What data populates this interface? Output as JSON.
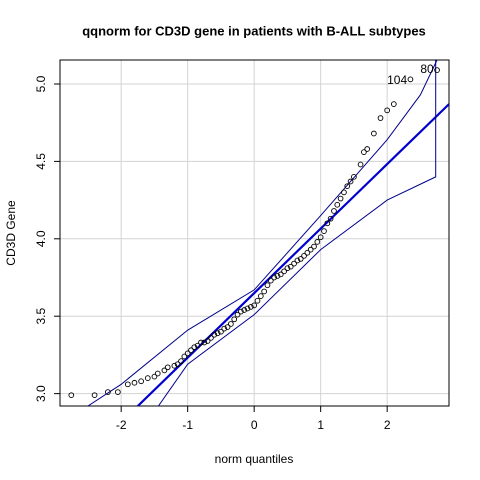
{
  "chart_data": {
    "type": "scatter",
    "title": "qqnorm for CD3D gene in patients with B-ALL subtypes",
    "xlabel": "norm quantiles",
    "ylabel": "CD3D Gene",
    "xlim": [
      -2.92,
      2.93
    ],
    "ylim": [
      2.92,
      5.155
    ],
    "xticks": [
      -2,
      -1,
      0,
      1,
      2
    ],
    "yticks": [
      {
        "value": 3,
        "label": "3.0"
      },
      3.5,
      {
        "value": 4,
        "label": "4.0"
      },
      4.5,
      {
        "value": 5,
        "label": "5.0"
      }
    ],
    "grid": true,
    "point_color": "#000000",
    "x": [
      -2.75,
      -2.4,
      -2.2,
      -2.05,
      -1.9,
      -1.8,
      -1.7,
      -1.6,
      -1.5,
      -1.45,
      -1.35,
      -1.3,
      -1.2,
      -1.15,
      -1.1,
      -1.05,
      -1.0,
      -0.95,
      -0.9,
      -0.85,
      -0.8,
      -0.75,
      -0.7,
      -0.65,
      -0.6,
      -0.55,
      -0.5,
      -0.45,
      -0.4,
      -0.35,
      -0.3,
      -0.25,
      -0.2,
      -0.15,
      -0.1,
      -0.05,
      0.0,
      0.05,
      0.1,
      0.15,
      0.2,
      0.25,
      0.3,
      0.35,
      0.4,
      0.45,
      0.5,
      0.55,
      0.6,
      0.65,
      0.7,
      0.75,
      0.8,
      0.85,
      0.9,
      0.95,
      1.0,
      1.05,
      1.1,
      1.15,
      1.2,
      1.25,
      1.3,
      1.35,
      1.4,
      1.45,
      1.5,
      1.6,
      1.65,
      1.7,
      1.8,
      1.9,
      2.0,
      2.1,
      2.35,
      2.75
    ],
    "y": [
      2.99,
      2.99,
      3.01,
      3.01,
      3.06,
      3.07,
      3.08,
      3.1,
      3.11,
      3.13,
      3.15,
      3.17,
      3.18,
      3.19,
      3.21,
      3.24,
      3.26,
      3.28,
      3.3,
      3.31,
      3.33,
      3.33,
      3.34,
      3.36,
      3.38,
      3.39,
      3.4,
      3.42,
      3.43,
      3.45,
      3.48,
      3.51,
      3.53,
      3.54,
      3.55,
      3.56,
      3.57,
      3.6,
      3.63,
      3.66,
      3.7,
      3.73,
      3.75,
      3.76,
      3.77,
      3.79,
      3.81,
      3.82,
      3.84,
      3.86,
      3.87,
      3.89,
      3.91,
      3.93,
      3.95,
      3.98,
      4.01,
      4.05,
      4.1,
      4.13,
      4.18,
      4.22,
      4.26,
      4.3,
      4.34,
      4.37,
      4.4,
      4.48,
      4.56,
      4.58,
      4.68,
      4.78,
      4.83,
      4.87,
      5.03,
      5.09
    ],
    "lines": [
      {
        "color": "#0000cd",
        "x": [
          -1.75,
          2.93
        ],
        "y": [
          2.92,
          4.87
        ]
      },
      {
        "color": "#00008b",
        "x": [
          -2.5,
          -2.0,
          -1.0,
          0.0,
          1.0,
          2.0,
          2.5,
          2.75
        ],
        "y": [
          2.92,
          3.06,
          3.41,
          3.67,
          4.15,
          4.64,
          4.93,
          5.155
        ]
      },
      {
        "color": "#00008b",
        "x": [
          -1.44,
          -1.0,
          0.0,
          1.0,
          2.0,
          2.73,
          2.73
        ],
        "y": [
          2.92,
          3.19,
          3.51,
          3.93,
          4.25,
          4.4,
          5.155
        ]
      }
    ],
    "annotations": [
      {
        "text": "104",
        "x": 2.15,
        "y": 5.02
      },
      {
        "text": "80",
        "x": 2.6,
        "y": 5.09
      }
    ]
  }
}
